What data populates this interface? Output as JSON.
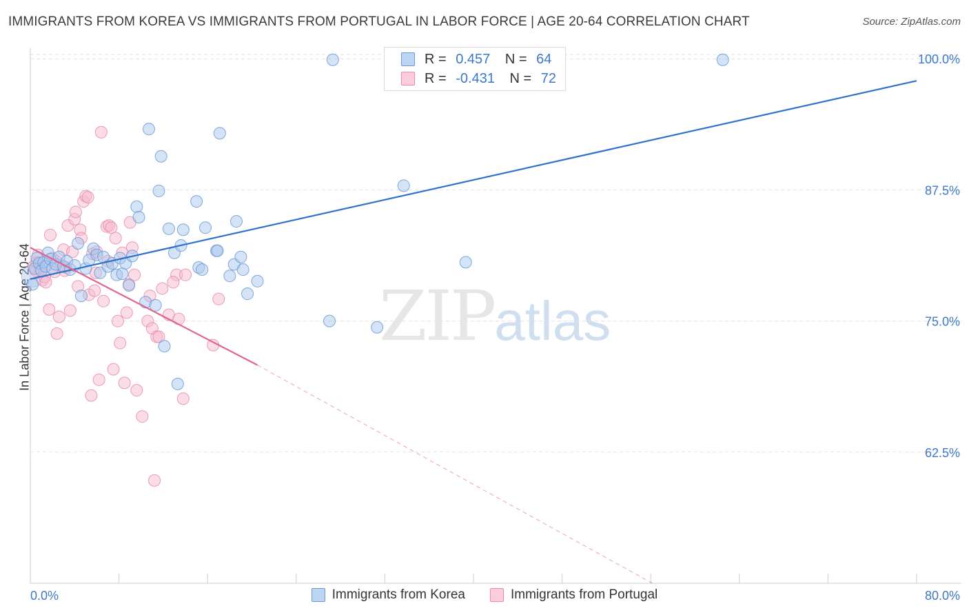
{
  "title": "IMMIGRANTS FROM KOREA VS IMMIGRANTS FROM PORTUGAL IN LABOR FORCE | AGE 20-64 CORRELATION CHART",
  "source": "Source: ZipAtlas.com",
  "watermark": {
    "zip": "ZIP",
    "atlas": "atlas"
  },
  "legend_top": {
    "rows": [
      {
        "r_label": "R =",
        "r_value": "0.457",
        "n_label": "N =",
        "n_value": "64"
      },
      {
        "r_label": "R =",
        "r_value": "-0.431",
        "n_label": "N =",
        "n_value": "72"
      }
    ]
  },
  "colors": {
    "korea_fill": "#a9c8ee",
    "korea_stroke": "#6a9ad6",
    "korea_line": "#2f72c9",
    "portugal_fill": "#f5bcd0",
    "portugal_stroke": "#e88aab",
    "portugal_line": "#e0648f",
    "grid": "#e2e2e2",
    "axis_text": "#3c78c8"
  },
  "chart_data": {
    "type": "scatter",
    "title": "IMMIGRANTS FROM KOREA VS IMMIGRANTS FROM PORTUGAL IN LABOR FORCE | AGE 20-64 CORRELATION CHART",
    "xlabel": "",
    "ylabel": "In Labor Force | Age 20-64",
    "xlim": [
      0,
      80
    ],
    "ylim": [
      50,
      101
    ],
    "x_tick_labels": [
      "0.0%",
      "80.0%"
    ],
    "y_ticks": [
      62.5,
      75.0,
      87.5,
      100.0
    ],
    "y_tick_labels": [
      "62.5%",
      "75.0%",
      "87.5%",
      "100.0%"
    ],
    "grid": true,
    "legend_position": "bottom",
    "series": [
      {
        "name": "Immigrants from Korea",
        "stats": {
          "R": 0.457,
          "N": 64
        },
        "trend": {
          "x": [
            0,
            80
          ],
          "y": [
            79.0,
            97.9
          ],
          "style": "solid"
        },
        "points": [
          [
            0.2,
            78.5
          ],
          [
            0.4,
            80.0
          ],
          [
            0.6,
            81.0
          ],
          [
            0.8,
            80.5
          ],
          [
            1.0,
            79.8
          ],
          [
            1.2,
            80.6
          ],
          [
            1.4,
            80.2
          ],
          [
            1.6,
            81.5
          ],
          [
            1.8,
            80.9
          ],
          [
            2.0,
            80.0
          ],
          [
            2.3,
            80.4
          ],
          [
            2.6,
            81.1
          ],
          [
            3.0,
            80.2
          ],
          [
            3.3,
            80.7
          ],
          [
            3.6,
            79.9
          ],
          [
            4.0,
            80.3
          ],
          [
            4.3,
            82.4
          ],
          [
            4.6,
            77.4
          ],
          [
            5.0,
            80.0
          ],
          [
            5.3,
            80.8
          ],
          [
            5.7,
            81.9
          ],
          [
            6.0,
            81.3
          ],
          [
            6.3,
            79.6
          ],
          [
            6.6,
            81.1
          ],
          [
            7.0,
            80.2
          ],
          [
            7.4,
            80.5
          ],
          [
            7.8,
            79.4
          ],
          [
            8.1,
            81.0
          ],
          [
            8.3,
            79.5
          ],
          [
            8.6,
            80.5
          ],
          [
            8.9,
            78.4
          ],
          [
            9.2,
            81.2
          ],
          [
            9.6,
            85.9
          ],
          [
            9.8,
            84.9
          ],
          [
            10.4,
            76.8
          ],
          [
            10.7,
            93.3
          ],
          [
            11.3,
            76.5
          ],
          [
            11.6,
            87.4
          ],
          [
            11.8,
            90.7
          ],
          [
            12.1,
            72.6
          ],
          [
            12.5,
            83.8
          ],
          [
            13.0,
            81.5
          ],
          [
            13.3,
            69.0
          ],
          [
            13.6,
            82.2
          ],
          [
            13.8,
            83.7
          ],
          [
            15.0,
            86.4
          ],
          [
            15.2,
            80.1
          ],
          [
            15.5,
            79.9
          ],
          [
            15.8,
            83.9
          ],
          [
            16.8,
            81.7
          ],
          [
            16.9,
            81.7
          ],
          [
            17.1,
            92.9
          ],
          [
            18.0,
            79.3
          ],
          [
            18.4,
            80.4
          ],
          [
            18.6,
            84.5
          ],
          [
            19.0,
            81.1
          ],
          [
            19.2,
            79.9
          ],
          [
            19.6,
            77.6
          ],
          [
            20.5,
            78.8
          ],
          [
            27.0,
            75.0
          ],
          [
            27.3,
            99.9
          ],
          [
            31.3,
            74.4
          ],
          [
            33.7,
            87.9
          ],
          [
            39.3,
            80.6
          ],
          [
            62.5,
            99.9
          ]
        ]
      },
      {
        "name": "Immigrants from Portugal",
        "stats": {
          "R": -0.431,
          "N": 72
        },
        "trend": {
          "x": [
            0,
            20.5
          ],
          "y": [
            82.0,
            70.8
          ],
          "style": "solid",
          "extended_to": [
            56.5,
            49.8
          ],
          "extension_style": "dashed"
        },
        "points": [
          [
            0.3,
            80.2
          ],
          [
            0.5,
            79.8
          ],
          [
            0.7,
            81.3
          ],
          [
            0.9,
            80.0
          ],
          [
            1.1,
            78.9
          ],
          [
            1.3,
            79.2
          ],
          [
            1.5,
            80.4
          ],
          [
            1.7,
            76.1
          ],
          [
            1.8,
            83.2
          ],
          [
            2.0,
            81.0
          ],
          [
            2.2,
            79.7
          ],
          [
            2.4,
            73.8
          ],
          [
            2.6,
            75.4
          ],
          [
            2.8,
            80.3
          ],
          [
            3.0,
            81.8
          ],
          [
            3.2,
            80.1
          ],
          [
            3.4,
            84.1
          ],
          [
            3.6,
            76.0
          ],
          [
            3.8,
            81.6
          ],
          [
            4.0,
            84.7
          ],
          [
            4.1,
            85.4
          ],
          [
            4.3,
            78.3
          ],
          [
            4.5,
            83.7
          ],
          [
            4.6,
            82.9
          ],
          [
            4.8,
            86.4
          ],
          [
            5.0,
            86.9
          ],
          [
            5.2,
            86.8
          ],
          [
            5.3,
            77.5
          ],
          [
            5.5,
            67.9
          ],
          [
            5.6,
            81.4
          ],
          [
            5.8,
            77.9
          ],
          [
            6.0,
            81.6
          ],
          [
            6.2,
            69.4
          ],
          [
            6.4,
            93.0
          ],
          [
            6.6,
            76.9
          ],
          [
            6.9,
            84.0
          ],
          [
            7.1,
            84.1
          ],
          [
            7.3,
            83.9
          ],
          [
            7.5,
            70.4
          ],
          [
            7.7,
            82.9
          ],
          [
            7.9,
            75.0
          ],
          [
            8.1,
            72.9
          ],
          [
            8.3,
            81.5
          ],
          [
            8.5,
            69.1
          ],
          [
            8.7,
            75.8
          ],
          [
            8.9,
            78.5
          ],
          [
            9.0,
            84.4
          ],
          [
            9.2,
            82.0
          ],
          [
            9.4,
            79.4
          ],
          [
            9.6,
            68.4
          ],
          [
            10.1,
            65.9
          ],
          [
            10.6,
            75.0
          ],
          [
            10.8,
            77.4
          ],
          [
            11.0,
            74.3
          ],
          [
            11.2,
            59.8
          ],
          [
            11.4,
            73.5
          ],
          [
            11.6,
            73.5
          ],
          [
            11.9,
            78.1
          ],
          [
            12.5,
            75.6
          ],
          [
            13.2,
            79.4
          ],
          [
            13.4,
            75.2
          ],
          [
            13.8,
            67.6
          ],
          [
            14.0,
            79.4
          ],
          [
            16.5,
            72.7
          ],
          [
            17.0,
            77.1
          ],
          [
            0.6,
            80.6
          ],
          [
            1.4,
            78.7
          ],
          [
            2.3,
            80.7
          ],
          [
            3.1,
            79.8
          ],
          [
            5.9,
            79.6
          ],
          [
            7.0,
            80.7
          ],
          [
            12.9,
            78.7
          ]
        ]
      }
    ]
  }
}
